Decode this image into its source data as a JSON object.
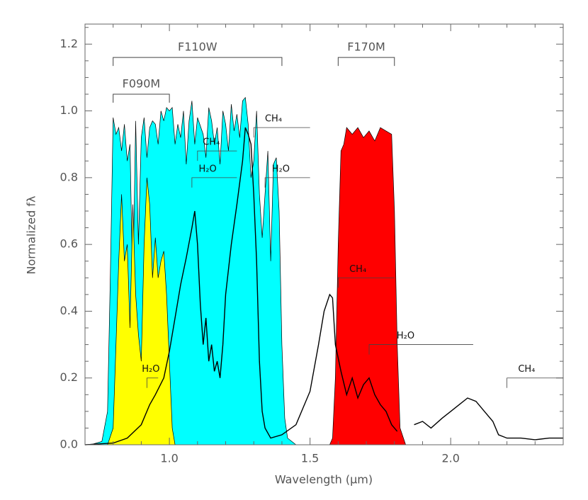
{
  "chart_data": {
    "type": "line",
    "xlabel": "Wavelength (μm)",
    "ylabel": "Normalized fλ",
    "xlim": [
      0.7,
      2.4
    ],
    "ylim": [
      0,
      1.26
    ],
    "xticks": [
      {
        "value": 1,
        "label": "1.0"
      },
      1.5,
      {
        "value": 2,
        "label": "2.0"
      }
    ],
    "yticks": [
      {
        "value": 0,
        "label": "0.0"
      },
      0.2,
      0.4,
      0.6,
      0.8,
      {
        "value": 1,
        "label": "1.0"
      },
      1.2
    ],
    "minor_xticks": [
      0.8,
      0.9,
      1.1,
      1.2,
      1.3,
      1.4,
      1.6,
      1.7,
      1.8,
      1.9,
      2.1,
      2.2,
      2.3
    ],
    "minor_yticks": [
      0.05,
      0.1,
      0.15,
      0.25,
      0.3,
      0.35,
      0.45,
      0.5,
      0.55,
      0.65,
      0.7,
      0.75,
      0.85,
      0.9,
      0.95,
      1.05,
      1.1,
      1.15,
      1.25
    ],
    "series": [
      {
        "style": "area",
        "color": "#00ffff",
        "x": [
          0.72,
          0.76,
          0.78,
          0.79,
          0.8,
          0.81,
          0.82,
          0.83,
          0.84,
          0.85,
          0.86,
          0.87,
          0.88,
          0.89,
          0.9,
          0.91,
          0.92,
          0.93,
          0.94,
          0.95,
          0.96,
          0.97,
          0.98,
          0.99,
          1.0,
          1.01,
          1.02,
          1.03,
          1.04,
          1.05,
          1.06,
          1.07,
          1.08,
          1.09,
          1.1,
          1.12,
          1.13,
          1.14,
          1.15,
          1.16,
          1.17,
          1.18,
          1.19,
          1.2,
          1.21,
          1.22,
          1.23,
          1.24,
          1.25,
          1.26,
          1.27,
          1.28,
          1.29,
          1.3,
          1.31,
          1.32,
          1.33,
          1.34,
          1.35,
          1.36,
          1.37,
          1.38,
          1.39,
          1.4,
          1.41,
          1.42,
          1.45
        ],
        "values": [
          0,
          0.01,
          0.1,
          0.5,
          0.98,
          0.93,
          0.95,
          0.88,
          0.96,
          0.85,
          0.9,
          0.45,
          0.97,
          0.6,
          0.92,
          0.98,
          0.86,
          0.95,
          0.97,
          0.96,
          0.9,
          1.0,
          0.97,
          1.01,
          1.0,
          1.01,
          0.9,
          0.96,
          0.92,
          1.0,
          0.84,
          0.97,
          1.03,
          0.9,
          0.98,
          0.93,
          0.86,
          1.01,
          0.97,
          0.9,
          0.95,
          0.84,
          1.0,
          0.96,
          0.88,
          1.02,
          0.94,
          0.99,
          0.92,
          1.03,
          1.04,
          0.96,
          0.8,
          0.85,
          1.0,
          0.75,
          0.62,
          0.75,
          0.88,
          0.55,
          0.84,
          0.86,
          0.7,
          0.3,
          0.08,
          0.02,
          0
        ]
      },
      {
        "style": "area",
        "color": "#ffff00",
        "x": [
          0.78,
          0.8,
          0.81,
          0.82,
          0.83,
          0.84,
          0.85,
          0.86,
          0.87,
          0.88,
          0.89,
          0.9,
          0.91,
          0.92,
          0.93,
          0.94,
          0.95,
          0.96,
          0.97,
          0.98,
          0.99,
          1.0,
          1.01,
          1.02
        ],
        "values": [
          0,
          0.05,
          0.3,
          0.55,
          0.75,
          0.55,
          0.6,
          0.35,
          0.72,
          0.45,
          0.33,
          0.25,
          0.6,
          0.8,
          0.72,
          0.5,
          0.62,
          0.5,
          0.55,
          0.58,
          0.45,
          0.25,
          0.05,
          0
        ]
      },
      {
        "style": "area",
        "color": "#ff0000",
        "x": [
          1.57,
          1.58,
          1.59,
          1.6,
          1.61,
          1.62,
          1.63,
          1.65,
          1.67,
          1.69,
          1.71,
          1.73,
          1.75,
          1.77,
          1.79,
          1.8,
          1.81,
          1.82,
          1.84
        ],
        "values": [
          0,
          0.02,
          0.2,
          0.6,
          0.88,
          0.9,
          0.95,
          0.93,
          0.95,
          0.92,
          0.94,
          0.91,
          0.95,
          0.94,
          0.93,
          0.7,
          0.3,
          0.05,
          0
        ]
      },
      {
        "style": "line",
        "color": "#000000",
        "x": [
          0.7,
          0.8,
          0.85,
          0.9,
          0.93,
          0.95,
          0.98,
          1.0,
          1.02,
          1.04,
          1.06,
          1.08,
          1.09,
          1.1,
          1.11,
          1.12,
          1.13,
          1.14,
          1.15,
          1.16,
          1.17,
          1.18,
          1.19,
          1.2,
          1.22,
          1.24,
          1.26,
          1.27,
          1.28,
          1.29,
          1.3,
          1.31,
          1.32,
          1.33,
          1.34,
          1.36,
          1.4,
          1.45,
          1.5,
          1.53,
          1.55,
          1.57,
          1.58,
          1.59,
          1.61,
          1.63,
          1.65,
          1.67,
          1.69,
          1.71,
          1.73,
          1.75,
          1.77,
          1.79,
          1.81,
          1.83,
          1.87,
          1.9,
          1.93,
          1.97,
          2.0,
          2.03,
          2.06,
          2.09,
          2.12,
          2.15,
          2.17,
          2.2,
          2.25,
          2.3,
          2.35,
          2.4
        ],
        "values": [
          0,
          0.005,
          0.02,
          0.06,
          0.12,
          0.15,
          0.2,
          0.28,
          0.38,
          0.48,
          0.56,
          0.65,
          0.7,
          0.6,
          0.42,
          0.3,
          0.38,
          0.25,
          0.3,
          0.22,
          0.25,
          0.2,
          0.3,
          0.45,
          0.6,
          0.72,
          0.85,
          0.95,
          0.93,
          0.9,
          0.75,
          0.55,
          0.25,
          0.1,
          0.05,
          0.02,
          0.03,
          0.06,
          0.16,
          0.3,
          0.4,
          0.45,
          0.44,
          0.3,
          0.22,
          0.15,
          0.2,
          0.14,
          0.18,
          0.2,
          0.15,
          0.12,
          0.1,
          0.06,
          0.04,
          null,
          0.06,
          0.07,
          0.05,
          0.08,
          0.1,
          0.12,
          0.14,
          0.13,
          0.1,
          0.07,
          0.03,
          0.02,
          0.02,
          0.015,
          0.02,
          0.02
        ]
      }
    ],
    "annotations": [
      {
        "text": "F110W",
        "kind": "bracket",
        "x": [
          0.8,
          1.4
        ],
        "y": 1.16
      },
      {
        "text": "F090M",
        "kind": "bracket",
        "x": [
          0.8,
          1.0
        ],
        "y": 1.05
      },
      {
        "text": "F170M",
        "kind": "bracket",
        "x": [
          1.6,
          1.8
        ],
        "y": 1.16
      },
      {
        "text": "CH₄",
        "kind": "band",
        "x": [
          1.3,
          1.5
        ],
        "y": 0.95
      },
      {
        "text": "CH₄",
        "kind": "band",
        "x": [
          1.1,
          1.24
        ],
        "y": 0.88
      },
      {
        "text": "H₂O",
        "kind": "band",
        "x": [
          1.08,
          1.24
        ],
        "y": 0.8
      },
      {
        "text": "H₂O",
        "kind": "band",
        "x": [
          1.34,
          1.5
        ],
        "y": 0.8
      },
      {
        "text": "CH₄",
        "kind": "band",
        "x": [
          1.6,
          1.8
        ],
        "y": 0.5
      },
      {
        "text": "H₂O",
        "kind": "band",
        "x": [
          1.71,
          2.08
        ],
        "y": 0.3
      },
      {
        "text": "H₂O",
        "kind": "band",
        "x": [
          0.92,
          0.96
        ],
        "y": 0.2
      },
      {
        "text": "CH₄",
        "kind": "band",
        "x": [
          2.2,
          2.4
        ],
        "y": 0.2
      }
    ]
  }
}
